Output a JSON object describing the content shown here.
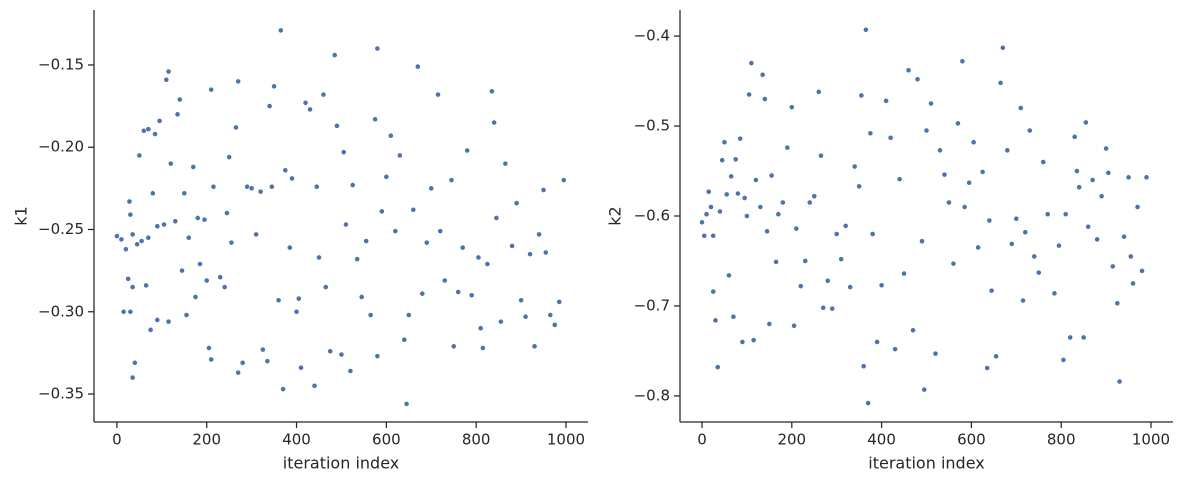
{
  "chart_data": [
    {
      "type": "scatter",
      "xlabel": "iteration index",
      "ylabel": "k1",
      "color": "#4c72b0",
      "xlim": [
        -51,
        1049
      ],
      "ylim": [
        -0.367,
        -0.1166
      ],
      "xticks": [
        0,
        200,
        400,
        600,
        800,
        1000
      ],
      "yticks": [
        {
          "value": -0.35,
          "label": "−0.35"
        },
        {
          "value": -0.3,
          "label": "−0.30"
        },
        {
          "value": -0.25,
          "label": "−0.25"
        },
        {
          "value": -0.2,
          "label": "−0.20"
        },
        {
          "value": -0.15,
          "label": "−0.15"
        }
      ],
      "x": [
        0,
        10,
        15,
        20,
        25,
        28,
        30,
        30,
        35,
        35,
        35,
        40,
        45,
        50,
        55,
        60,
        65,
        70,
        70,
        75,
        80,
        85,
        90,
        90,
        95,
        105,
        110,
        115,
        115,
        120,
        130,
        135,
        140,
        145,
        150,
        155,
        160,
        170,
        175,
        180,
        185,
        195,
        200,
        205,
        210,
        210,
        215,
        230,
        240,
        245,
        250,
        255,
        265,
        270,
        270,
        280,
        290,
        300,
        310,
        320,
        325,
        335,
        340,
        345,
        350,
        360,
        365,
        370,
        375,
        385,
        390,
        400,
        405,
        410,
        420,
        430,
        440,
        445,
        450,
        460,
        465,
        475,
        485,
        490,
        500,
        505,
        510,
        520,
        525,
        535,
        545,
        555,
        565,
        575,
        580,
        580,
        590,
        600,
        610,
        620,
        630,
        640,
        645,
        650,
        660,
        670,
        680,
        690,
        700,
        715,
        720,
        730,
        745,
        750,
        760,
        770,
        780,
        790,
        805,
        810,
        815,
        825,
        835,
        840,
        845,
        855,
        865,
        880,
        890,
        900,
        910,
        920,
        930,
        940,
        950,
        955,
        965,
        975,
        985,
        995
      ],
      "y": [
        -0.254,
        -0.256,
        -0.3,
        -0.262,
        -0.28,
        -0.233,
        -0.241,
        -0.3,
        -0.253,
        -0.285,
        -0.34,
        -0.331,
        -0.259,
        -0.205,
        -0.257,
        -0.19,
        -0.284,
        -0.189,
        -0.255,
        -0.311,
        -0.228,
        -0.192,
        -0.248,
        -0.305,
        -0.184,
        -0.247,
        -0.159,
        -0.154,
        -0.306,
        -0.21,
        -0.245,
        -0.18,
        -0.171,
        -0.275,
        -0.228,
        -0.302,
        -0.255,
        -0.212,
        -0.291,
        -0.243,
        -0.271,
        -0.244,
        -0.281,
        -0.322,
        -0.329,
        -0.165,
        -0.224,
        -0.279,
        -0.285,
        -0.24,
        -0.206,
        -0.258,
        -0.188,
        -0.16,
        -0.337,
        -0.331,
        -0.224,
        -0.225,
        -0.253,
        -0.227,
        -0.323,
        -0.33,
        -0.175,
        -0.224,
        -0.163,
        -0.293,
        -0.129,
        -0.347,
        -0.214,
        -0.261,
        -0.219,
        -0.3,
        -0.292,
        -0.334,
        -0.173,
        -0.177,
        -0.345,
        -0.224,
        -0.267,
        -0.168,
        -0.285,
        -0.324,
        -0.144,
        -0.187,
        -0.326,
        -0.203,
        -0.247,
        -0.336,
        -0.223,
        -0.268,
        -0.291,
        -0.257,
        -0.302,
        -0.183,
        -0.14,
        -0.327,
        -0.239,
        -0.218,
        -0.193,
        -0.251,
        -0.205,
        -0.317,
        -0.356,
        -0.302,
        -0.238,
        -0.151,
        -0.289,
        -0.258,
        -0.225,
        -0.168,
        -0.251,
        -0.281,
        -0.22,
        -0.321,
        -0.288,
        -0.261,
        -0.202,
        -0.29,
        -0.267,
        -0.31,
        -0.322,
        -0.271,
        -0.166,
        -0.185,
        -0.243,
        -0.306,
        -0.21,
        -0.26,
        -0.234,
        -0.293,
        -0.303,
        -0.265,
        -0.321,
        -0.253,
        -0.226,
        -0.264,
        -0.302,
        -0.308,
        -0.294,
        -0.22
      ]
    },
    {
      "type": "scatter",
      "xlabel": "iteration index",
      "ylabel": "k2",
      "color": "#4c72b0",
      "xlim": [
        -49,
        1049
      ],
      "ylim": [
        -0.829,
        -0.371
      ],
      "xticks": [
        0,
        200,
        400,
        600,
        800,
        1000
      ],
      "yticks": [
        {
          "value": -0.8,
          "label": "−0.8"
        },
        {
          "value": -0.7,
          "label": "−0.7"
        },
        {
          "value": -0.6,
          "label": "−0.6"
        },
        {
          "value": -0.5,
          "label": "−0.5"
        },
        {
          "value": -0.4,
          "label": "−0.4"
        }
      ],
      "x": [
        0,
        5,
        10,
        15,
        20,
        25,
        25,
        30,
        35,
        40,
        45,
        50,
        55,
        60,
        65,
        70,
        75,
        80,
        85,
        90,
        95,
        100,
        105,
        110,
        115,
        120,
        130,
        135,
        140,
        145,
        150,
        155,
        165,
        170,
        180,
        190,
        200,
        205,
        210,
        220,
        230,
        240,
        250,
        260,
        265,
        270,
        280,
        290,
        300,
        310,
        320,
        330,
        340,
        350,
        355,
        360,
        365,
        370,
        375,
        380,
        390,
        400,
        410,
        420,
        430,
        440,
        450,
        460,
        470,
        480,
        490,
        495,
        500,
        510,
        520,
        530,
        540,
        550,
        560,
        570,
        580,
        585,
        595,
        605,
        615,
        625,
        635,
        640,
        645,
        655,
        665,
        670,
        680,
        690,
        700,
        710,
        715,
        720,
        730,
        740,
        750,
        760,
        770,
        785,
        795,
        805,
        810,
        820,
        830,
        835,
        840,
        850,
        855,
        860,
        870,
        880,
        890,
        900,
        905,
        915,
        925,
        930,
        940,
        950,
        955,
        960,
        970,
        980,
        990
      ],
      "y": [
        -0.607,
        -0.622,
        -0.598,
        -0.573,
        -0.59,
        -0.622,
        -0.684,
        -0.716,
        -0.768,
        -0.595,
        -0.538,
        -0.518,
        -0.576,
        -0.666,
        -0.556,
        -0.712,
        -0.537,
        -0.575,
        -0.514,
        -0.74,
        -0.58,
        -0.6,
        -0.465,
        -0.43,
        -0.738,
        -0.56,
        -0.59,
        -0.443,
        -0.47,
        -0.617,
        -0.72,
        -0.555,
        -0.651,
        -0.598,
        -0.585,
        -0.524,
        -0.479,
        -0.722,
        -0.614,
        -0.678,
        -0.65,
        -0.585,
        -0.578,
        -0.462,
        -0.533,
        -0.702,
        -0.672,
        -0.703,
        -0.62,
        -0.648,
        -0.611,
        -0.679,
        -0.545,
        -0.567,
        -0.466,
        -0.767,
        -0.393,
        -0.808,
        -0.508,
        -0.62,
        -0.74,
        -0.677,
        -0.472,
        -0.513,
        -0.748,
        -0.559,
        -0.664,
        -0.438,
        -0.727,
        -0.448,
        -0.628,
        -0.793,
        -0.505,
        -0.475,
        -0.753,
        -0.527,
        -0.554,
        -0.585,
        -0.653,
        -0.497,
        -0.428,
        -0.59,
        -0.563,
        -0.518,
        -0.635,
        -0.551,
        -0.769,
        -0.605,
        -0.683,
        -0.756,
        -0.452,
        -0.413,
        -0.527,
        -0.631,
        -0.603,
        -0.48,
        -0.694,
        -0.618,
        -0.505,
        -0.645,
        -0.663,
        -0.54,
        -0.598,
        -0.686,
        -0.633,
        -0.76,
        -0.598,
        -0.735,
        -0.512,
        -0.55,
        -0.568,
        -0.735,
        -0.496,
        -0.612,
        -0.56,
        -0.626,
        -0.578,
        -0.525,
        -0.552,
        -0.656,
        -0.697,
        -0.784,
        -0.623,
        -0.557,
        -0.645,
        -0.675,
        -0.59,
        -0.661,
        -0.557
      ]
    }
  ]
}
